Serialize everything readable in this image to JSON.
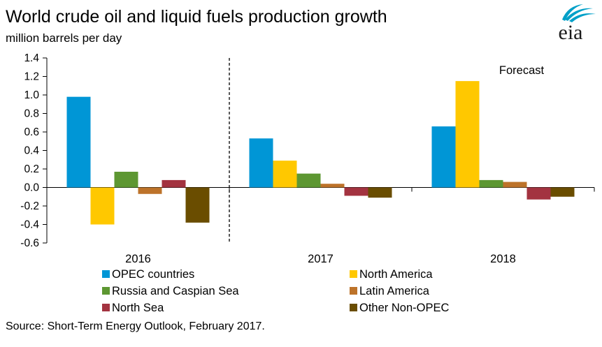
{
  "title": "World crude oil and liquid fuels production growth",
  "subtitle": "million  barrels per day",
  "source": "Source: Short-Term Energy Outlook, February 2017.",
  "logo_text": "eia",
  "chart_data": {
    "type": "bar",
    "title": "World crude oil and liquid fuels production growth",
    "ylabel": "million  barrels per day",
    "xlabel": "",
    "categories": [
      "2016",
      "2017",
      "2018"
    ],
    "ylim": [
      -0.6,
      1.4
    ],
    "yticks": [
      -0.6,
      -0.4,
      -0.2,
      0.0,
      0.2,
      0.4,
      0.6,
      0.8,
      1.0,
      1.2,
      1.4
    ],
    "ytick_labels": [
      "-0.6",
      "-0.4",
      "-0.2",
      "0.0",
      "0.2",
      "0.4",
      "0.6",
      "0.8",
      "1.0",
      "1.2",
      "1.4"
    ],
    "grid": false,
    "legend_position": "bottom",
    "annotation": "Forecast",
    "series": [
      {
        "name": "OPEC countries",
        "color": "#0096d6",
        "values": [
          0.98,
          0.53,
          0.66
        ]
      },
      {
        "name": "North America",
        "color": "#ffc800",
        "values": [
          -0.4,
          0.29,
          1.15
        ]
      },
      {
        "name": "Russia and Caspian Sea",
        "color": "#5d9732",
        "values": [
          0.17,
          0.15,
          0.08
        ]
      },
      {
        "name": "Latin America",
        "color": "#bd732a",
        "values": [
          -0.07,
          0.04,
          0.06
        ]
      },
      {
        "name": "North Sea",
        "color": "#a33340",
        "values": [
          0.08,
          -0.09,
          -0.13
        ]
      },
      {
        "name": "Other Non-OPEC",
        "color": "#6a4d00",
        "values": [
          -0.38,
          -0.11,
          -0.1
        ]
      }
    ]
  }
}
